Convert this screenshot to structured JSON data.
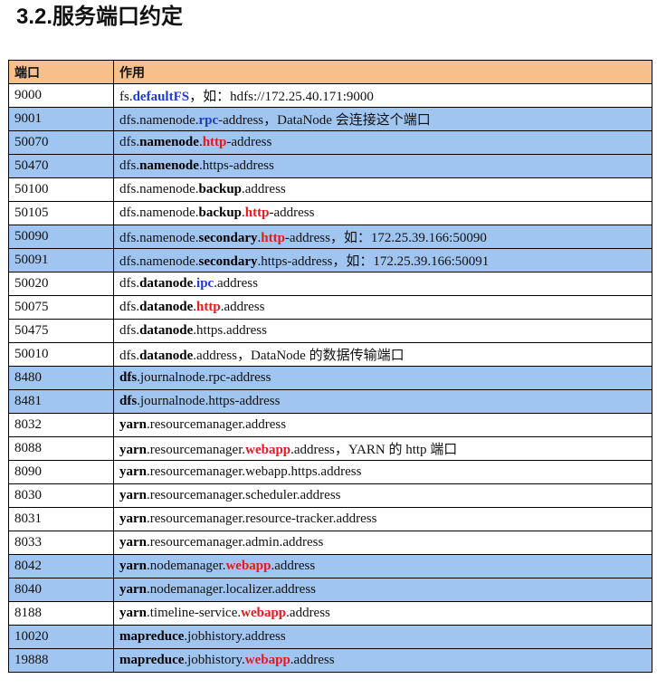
{
  "heading": "3.2.服务端口约定",
  "table": {
    "header": {
      "port": "端口",
      "usage": "作用"
    },
    "rows": [
      {
        "port": "9000",
        "hl": false,
        "segs": [
          [
            "fs.",
            ""
          ],
          [
            "defaultFS",
            "blue"
          ],
          [
            "，如：hdfs://172.25.40.171:9000",
            ""
          ]
        ]
      },
      {
        "port": "9001",
        "hl": true,
        "segs": [
          [
            "dfs.namenode.",
            ""
          ],
          [
            "rpc",
            "blue"
          ],
          [
            "-address，DataNode 会连接这个端口",
            ""
          ]
        ]
      },
      {
        "port": "50070",
        "hl": true,
        "segs": [
          [
            "dfs.",
            ""
          ],
          [
            "namenode",
            "blk"
          ],
          [
            ".",
            ""
          ],
          [
            "http",
            "red"
          ],
          [
            "-address",
            ""
          ]
        ]
      },
      {
        "port": "50470",
        "hl": true,
        "segs": [
          [
            "dfs.",
            ""
          ],
          [
            "namenode",
            "blk"
          ],
          [
            ".https-address",
            ""
          ]
        ]
      },
      {
        "port": "50100",
        "hl": false,
        "segs": [
          [
            "dfs.namenode.",
            ""
          ],
          [
            "backup",
            "blk"
          ],
          [
            ".address",
            ""
          ]
        ]
      },
      {
        "port": "50105",
        "hl": false,
        "segs": [
          [
            "dfs.namenode.",
            ""
          ],
          [
            "backup",
            "blk"
          ],
          [
            ".",
            ""
          ],
          [
            "http",
            "red"
          ],
          [
            "-address",
            ""
          ]
        ]
      },
      {
        "port": "50090",
        "hl": true,
        "segs": [
          [
            "dfs.namenode.",
            ""
          ],
          [
            "secondary",
            "blk"
          ],
          [
            ".",
            ""
          ],
          [
            "http",
            "red"
          ],
          [
            "-address，如：172.25.39.166:50090",
            ""
          ]
        ]
      },
      {
        "port": "50091",
        "hl": true,
        "segs": [
          [
            "dfs.namenode.",
            ""
          ],
          [
            "secondary",
            "blk"
          ],
          [
            ".https-address，如：172.25.39.166:50091",
            ""
          ]
        ]
      },
      {
        "port": "50020",
        "hl": false,
        "segs": [
          [
            "dfs.",
            ""
          ],
          [
            "datanode",
            "blk"
          ],
          [
            ".",
            ""
          ],
          [
            "ipc",
            "blue"
          ],
          [
            ".address",
            ""
          ]
        ]
      },
      {
        "port": "50075",
        "hl": false,
        "segs": [
          [
            "dfs.",
            ""
          ],
          [
            "datanode",
            "blk"
          ],
          [
            ".",
            ""
          ],
          [
            "http",
            "red"
          ],
          [
            ".address",
            ""
          ]
        ]
      },
      {
        "port": "50475",
        "hl": false,
        "segs": [
          [
            "dfs.",
            ""
          ],
          [
            "datanode",
            "blk"
          ],
          [
            ".https.address",
            ""
          ]
        ]
      },
      {
        "port": "50010",
        "hl": false,
        "segs": [
          [
            "dfs.",
            ""
          ],
          [
            "datanode",
            "blk"
          ],
          [
            ".address，DataNode 的数据传输端口",
            ""
          ]
        ]
      },
      {
        "port": "8480",
        "hl": true,
        "segs": [
          [
            "dfs",
            "blk"
          ],
          [
            ".journalnode.rpc-address",
            ""
          ]
        ]
      },
      {
        "port": "8481",
        "hl": true,
        "segs": [
          [
            "dfs",
            "blk"
          ],
          [
            ".journalnode.https-address",
            ""
          ]
        ]
      },
      {
        "port": "8032",
        "hl": false,
        "segs": [
          [
            "yarn",
            "blk"
          ],
          [
            ".resourcemanager.address",
            ""
          ]
        ]
      },
      {
        "port": "8088",
        "hl": false,
        "segs": [
          [
            "yarn",
            "blk"
          ],
          [
            ".resourcemanager.",
            ""
          ],
          [
            "webapp",
            "red"
          ],
          [
            ".address，YARN 的 http 端口",
            ""
          ]
        ]
      },
      {
        "port": "8090",
        "hl": false,
        "segs": [
          [
            "yarn",
            "blk"
          ],
          [
            ".resourcemanager.webapp.https.address",
            ""
          ]
        ]
      },
      {
        "port": "8030",
        "hl": false,
        "segs": [
          [
            "yarn",
            "blk"
          ],
          [
            ".resourcemanager.scheduler.address",
            ""
          ]
        ]
      },
      {
        "port": "8031",
        "hl": false,
        "segs": [
          [
            "yarn",
            "blk"
          ],
          [
            ".resourcemanager.resource-tracker.address",
            ""
          ]
        ]
      },
      {
        "port": "8033",
        "hl": false,
        "segs": [
          [
            "yarn",
            "blk"
          ],
          [
            ".resourcemanager.admin.address",
            ""
          ]
        ]
      },
      {
        "port": "8042",
        "hl": true,
        "segs": [
          [
            "yarn",
            "blk"
          ],
          [
            ".nodemanager.",
            ""
          ],
          [
            "webapp",
            "red"
          ],
          [
            ".address",
            ""
          ]
        ]
      },
      {
        "port": "8040",
        "hl": true,
        "segs": [
          [
            "yarn",
            "blk"
          ],
          [
            ".nodemanager.localizer.address",
            ""
          ]
        ]
      },
      {
        "port": "8188",
        "hl": false,
        "segs": [
          [
            "yarn",
            "blk"
          ],
          [
            ".timeline-service.",
            ""
          ],
          [
            "webapp",
            "red"
          ],
          [
            ".address",
            ""
          ]
        ]
      },
      {
        "port": "10020",
        "hl": true,
        "segs": [
          [
            "mapreduce",
            "blk"
          ],
          [
            ".jobhistory.address",
            ""
          ]
        ]
      },
      {
        "port": "19888",
        "hl": true,
        "segs": [
          [
            "mapreduce",
            "blk"
          ],
          [
            ".jobhistory.",
            ""
          ],
          [
            "webapp",
            "red"
          ],
          [
            ".address",
            ""
          ]
        ]
      }
    ]
  },
  "colors": {
    "header_bg": "#f7c08a",
    "highlight_row_bg": "#9fc5f0",
    "blue_text": "#1f3cc7",
    "red_text": "#e11c1c"
  }
}
